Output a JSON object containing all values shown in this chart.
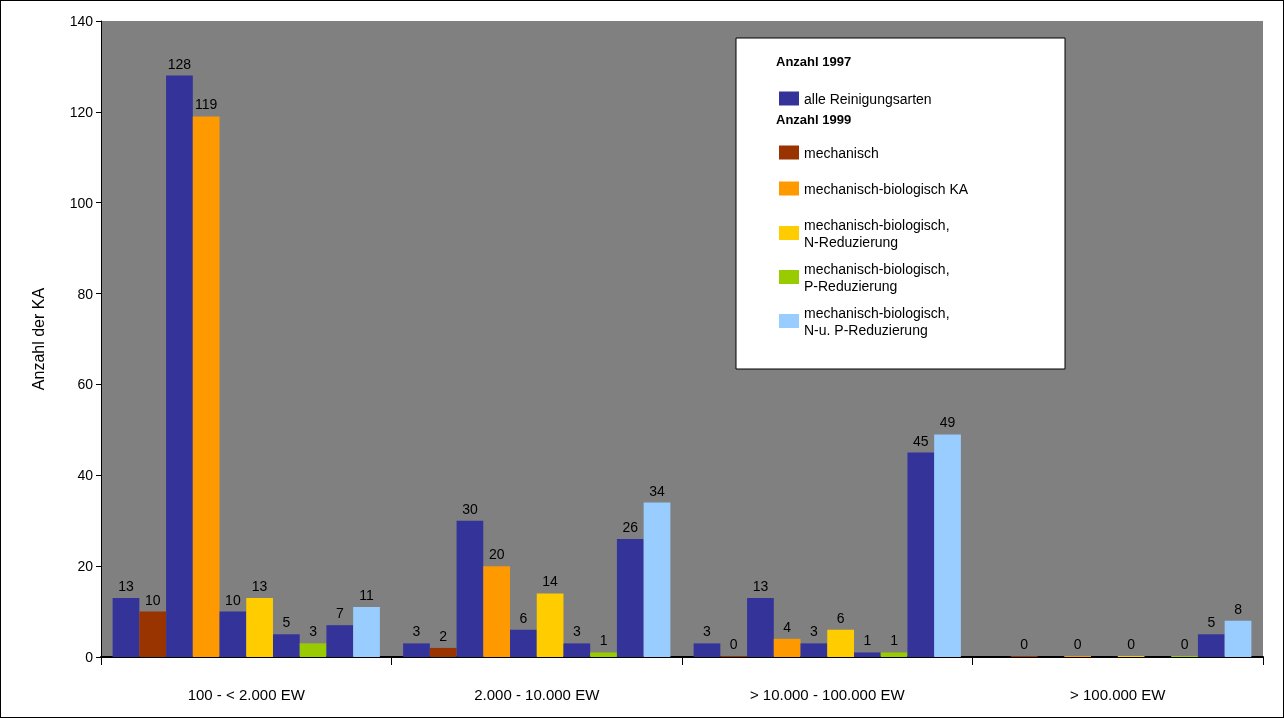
{
  "chart_data": {
    "type": "bar",
    "ylabel": "Anzahl der KA",
    "categories": [
      "100 - < 2.000 EW",
      "2.000 - 10.000 EW",
      "> 10.000 - 100.000 EW",
      "> 100.000 EW"
    ],
    "series": [
      {
        "name": "alle Reinigungsarten",
        "color": "#333399",
        "values": [
          13,
          3,
          3,
          null
        ]
      },
      {
        "name": "mechanisch",
        "color": "#993300",
        "values": [
          10,
          2,
          0,
          0
        ]
      },
      {
        "color": "#333399",
        "values": [
          128,
          30,
          13,
          null
        ]
      },
      {
        "name": "mechanisch-biologisch KA",
        "color": "#ff9900",
        "values": [
          119,
          20,
          4,
          0
        ]
      },
      {
        "color": "#333399",
        "values": [
          10,
          6,
          3,
          null
        ]
      },
      {
        "name": "mechanisch-biologisch,\nN-Reduzierung",
        "color": "#ffcc00",
        "values": [
          13,
          14,
          6,
          0
        ]
      },
      {
        "color": "#333399",
        "values": [
          5,
          3,
          1,
          null
        ]
      },
      {
        "name": "mechanisch-biologisch,\nP-Reduzierung",
        "color": "#99cc00",
        "values": [
          3,
          1,
          1,
          0
        ]
      },
      {
        "color": "#333399",
        "values": [
          7,
          26,
          45,
          5
        ]
      },
      {
        "name": "mechanisch-biologisch,\nN-u. P-Reduzierung",
        "color": "#99ccff",
        "values": [
          11,
          34,
          49,
          8
        ]
      }
    ],
    "ylim": [
      0,
      140
    ],
    "yticks": [
      0,
      20,
      40,
      60,
      80,
      100,
      120,
      140
    ],
    "grid": false,
    "legend": "top right",
    "data_labels": true,
    "annotations": [
      "Anzahl 1997",
      "Anzahl 1999"
    ]
  }
}
